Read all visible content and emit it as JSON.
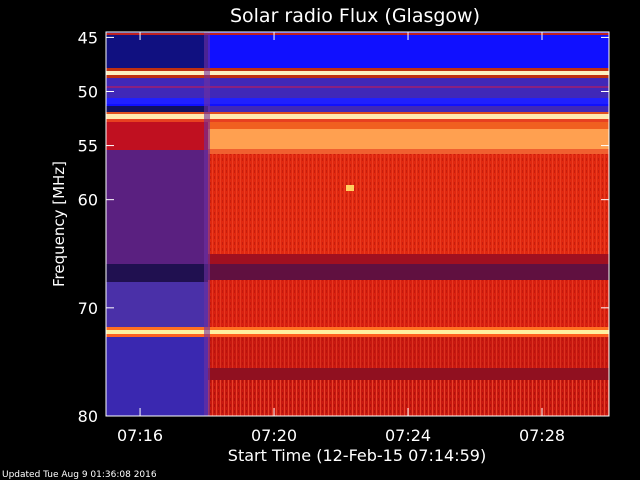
{
  "chart_data": {
    "type": "heatmap",
    "title": "Solar radio Flux (Glasgow)",
    "xlabel": "Start Time (12-Feb-15 07:14:59)",
    "ylabel": "Frequency [MHz]",
    "x_tick_labels": [
      "07:16",
      "07:20",
      "07:24",
      "07:28"
    ],
    "y_tick_labels": [
      "45",
      "50",
      "55",
      "60",
      "70",
      "80"
    ],
    "y_ticks": [
      45,
      50,
      55,
      60,
      70,
      80
    ],
    "ylim": [
      80,
      44.5
    ],
    "xlim": [
      "07:14:59",
      "07:30:00"
    ],
    "event_onset": "07:18:30",
    "hot_bands_mhz": [
      48.9,
      52.4,
      73.9
    ],
    "colors": {
      "pre_event": "#4030a0",
      "low_band": "#1a10ff",
      "main": "#e02010",
      "bright_band": "#fff0a0",
      "stripe_orange": "#ffa040"
    }
  },
  "footer": {
    "updated": "Updated Tue Aug  9 01:36:08 2016"
  }
}
